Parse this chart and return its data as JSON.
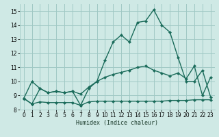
{
  "xlabel": "Humidex (Indice chaleur)",
  "xlim": [
    -0.5,
    23.5
  ],
  "ylim": [
    8.0,
    15.5
  ],
  "yticks": [
    8,
    9,
    10,
    11,
    12,
    13,
    14,
    15
  ],
  "xticks": [
    0,
    1,
    2,
    3,
    4,
    5,
    6,
    7,
    8,
    9,
    10,
    11,
    12,
    13,
    14,
    15,
    16,
    17,
    18,
    19,
    20,
    21,
    22,
    23
  ],
  "bg_color": "#cfe9e5",
  "grid_color": "#a0c8c4",
  "line_color": "#1a6b5a",
  "line1_y": [
    8.8,
    8.4,
    8.55,
    8.5,
    8.5,
    8.5,
    8.5,
    8.3,
    8.55,
    8.6,
    8.6,
    8.6,
    8.6,
    8.6,
    8.6,
    8.6,
    8.6,
    8.6,
    8.65,
    8.65,
    8.65,
    8.7,
    8.7,
    8.7
  ],
  "line2_y": [
    8.8,
    8.4,
    9.5,
    9.2,
    9.3,
    9.2,
    9.3,
    9.1,
    9.6,
    10.0,
    10.3,
    10.5,
    10.65,
    10.8,
    11.0,
    11.1,
    10.8,
    10.6,
    10.4,
    10.6,
    10.2,
    11.1,
    9.0,
    10.3
  ],
  "line3_y": [
    8.8,
    10.0,
    9.5,
    9.2,
    9.3,
    9.2,
    9.3,
    8.3,
    9.5,
    10.0,
    11.5,
    12.8,
    13.3,
    12.8,
    14.2,
    14.3,
    15.1,
    14.0,
    13.5,
    11.7,
    10.0,
    10.0,
    10.8,
    8.9
  ],
  "line_width": 1.0,
  "marker_size": 2.2
}
